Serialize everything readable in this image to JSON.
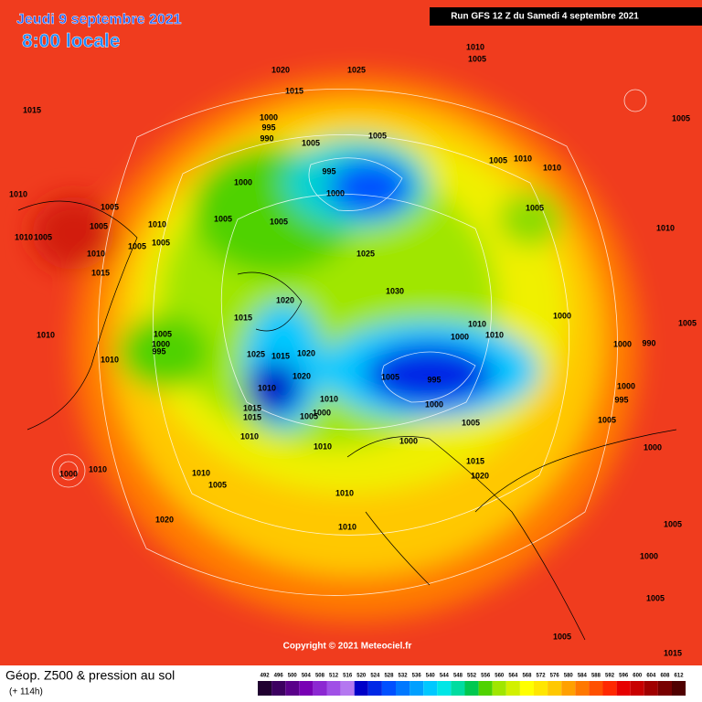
{
  "header": {
    "date": "Jeudi 9 septembre 2021",
    "time": "8:00 locale",
    "run": "Run GFS 12 Z du Samedi 4 septembre 2021"
  },
  "copyright": "Copyright © 2021 Meteociel.fr",
  "legend": {
    "title": "Géop. Z500 & pression au sol",
    "lead": "(+ 114h)",
    "scale": {
      "values": [
        492,
        496,
        500,
        504,
        508,
        512,
        516,
        520,
        524,
        528,
        532,
        536,
        540,
        544,
        548,
        552,
        556,
        560,
        564,
        568,
        572,
        576,
        580,
        584,
        588,
        592,
        596,
        600,
        604,
        608,
        612
      ],
      "colors": [
        "#200030",
        "#3c0060",
        "#5a008a",
        "#7800b4",
        "#8c28d2",
        "#a050e6",
        "#b478f0",
        "#0000c8",
        "#0028e6",
        "#0050ff",
        "#0078ff",
        "#00a0ff",
        "#00c8ff",
        "#00e6e6",
        "#00dca0",
        "#00c850",
        "#50d200",
        "#a0e600",
        "#d2f000",
        "#ffff00",
        "#ffe600",
        "#ffc800",
        "#ffa000",
        "#ff7800",
        "#ff5000",
        "#ff2800",
        "#e60000",
        "#c80000",
        "#a00000",
        "#780000",
        "#500000"
      ]
    }
  },
  "pressure_labels": [
    "1020",
    "1025",
    "1010",
    "1005",
    "1015",
    "1015",
    "1000",
    "995",
    "990",
    "1005",
    "1005",
    "995",
    "1000",
    "1000",
    "1005",
    "1010",
    "1010",
    "1005",
    "1010",
    "1005",
    "1005",
    "1010",
    "1005",
    "1005",
    "1005",
    "1025",
    "1010",
    "1010",
    "1005",
    "1005",
    "1005",
    "1010",
    "1015",
    "1030",
    "1020",
    "1015",
    "1000",
    "1010",
    "1010",
    "1000",
    "1005",
    "1005",
    "1000",
    "995",
    "1010",
    "1010",
    "1025",
    "1015",
    "1020",
    "1020",
    "1005",
    "995",
    "1000",
    "990",
    "1000",
    "995",
    "1010",
    "1000",
    "1005",
    "1005",
    "1010",
    "1015",
    "1015",
    "1005",
    "1000",
    "1010",
    "1010",
    "1000",
    "1000",
    "1015",
    "1020",
    "1010",
    "1005",
    "1000",
    "1010",
    "1010",
    "1010",
    "1020",
    "1005",
    "1000",
    "1005",
    "1005",
    "1015"
  ]
}
